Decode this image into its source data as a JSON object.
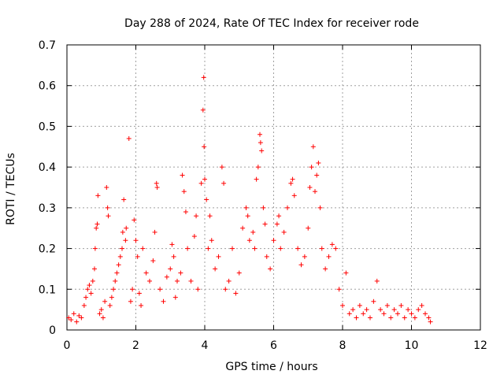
{
  "chart_data": {
    "type": "scatter",
    "title": "Day 288 of 2024, Rate Of TEC Index for receiver rode",
    "xlabel": "GPS time / hours",
    "ylabel": "ROTI / TECUs",
    "xlim": [
      0,
      12
    ],
    "ylim": [
      0,
      0.7
    ],
    "xticks": [
      0,
      2,
      4,
      6,
      8,
      10,
      12
    ],
    "xtick_labels": [
      "0",
      "2",
      "4",
      "6",
      "8",
      "10",
      "12"
    ],
    "yticks": [
      0,
      0.1,
      0.2,
      0.3,
      0.4,
      0.5,
      0.6,
      0.7
    ],
    "ytick_labels": [
      "0",
      "0.1",
      "0.2",
      "0.3",
      "0.4",
      "0.5",
      "0.6",
      "0.7"
    ],
    "grid": true,
    "marker": "+",
    "series": [
      {
        "name": "ROTI",
        "color": "#ff0000",
        "points": [
          [
            0.05,
            0.03
          ],
          [
            0.12,
            0.025
          ],
          [
            0.2,
            0.04
          ],
          [
            0.28,
            0.02
          ],
          [
            0.35,
            0.035
          ],
          [
            0.42,
            0.03
          ],
          [
            0.5,
            0.06
          ],
          [
            0.55,
            0.08
          ],
          [
            0.6,
            0.1
          ],
          [
            0.65,
            0.11
          ],
          [
            0.7,
            0.09
          ],
          [
            0.75,
            0.12
          ],
          [
            0.8,
            0.15
          ],
          [
            0.82,
            0.2
          ],
          [
            0.85,
            0.25
          ],
          [
            0.88,
            0.26
          ],
          [
            0.9,
            0.33
          ],
          [
            0.95,
            0.04
          ],
          [
            1.0,
            0.05
          ],
          [
            1.05,
            0.03
          ],
          [
            1.1,
            0.07
          ],
          [
            1.15,
            0.35
          ],
          [
            1.18,
            0.3
          ],
          [
            1.2,
            0.28
          ],
          [
            1.25,
            0.06
          ],
          [
            1.3,
            0.08
          ],
          [
            1.35,
            0.1
          ],
          [
            1.4,
            0.12
          ],
          [
            1.45,
            0.14
          ],
          [
            1.5,
            0.16
          ],
          [
            1.55,
            0.18
          ],
          [
            1.6,
            0.2
          ],
          [
            1.62,
            0.24
          ],
          [
            1.65,
            0.32
          ],
          [
            1.7,
            0.22
          ],
          [
            1.72,
            0.25
          ],
          [
            1.8,
            0.47
          ],
          [
            1.85,
            0.07
          ],
          [
            1.9,
            0.1
          ],
          [
            1.95,
            0.27
          ],
          [
            2.0,
            0.22
          ],
          [
            2.05,
            0.18
          ],
          [
            2.1,
            0.09
          ],
          [
            2.15,
            0.06
          ],
          [
            2.2,
            0.2
          ],
          [
            2.3,
            0.14
          ],
          [
            2.4,
            0.12
          ],
          [
            2.5,
            0.17
          ],
          [
            2.55,
            0.24
          ],
          [
            2.6,
            0.36
          ],
          [
            2.62,
            0.35
          ],
          [
            2.7,
            0.1
          ],
          [
            2.8,
            0.07
          ],
          [
            2.9,
            0.13
          ],
          [
            3.0,
            0.15
          ],
          [
            3.05,
            0.21
          ],
          [
            3.1,
            0.18
          ],
          [
            3.15,
            0.08
          ],
          [
            3.2,
            0.12
          ],
          [
            3.3,
            0.14
          ],
          [
            3.35,
            0.38
          ],
          [
            3.4,
            0.34
          ],
          [
            3.45,
            0.29
          ],
          [
            3.5,
            0.2
          ],
          [
            3.6,
            0.12
          ],
          [
            3.7,
            0.23
          ],
          [
            3.75,
            0.28
          ],
          [
            3.8,
            0.1
          ],
          [
            3.9,
            0.36
          ],
          [
            3.95,
            0.54
          ],
          [
            3.97,
            0.62
          ],
          [
            3.98,
            0.45
          ],
          [
            4.0,
            0.37
          ],
          [
            4.05,
            0.32
          ],
          [
            4.1,
            0.2
          ],
          [
            4.15,
            0.28
          ],
          [
            4.2,
            0.22
          ],
          [
            4.3,
            0.15
          ],
          [
            4.4,
            0.18
          ],
          [
            4.5,
            0.4
          ],
          [
            4.55,
            0.36
          ],
          [
            4.6,
            0.1
          ],
          [
            4.7,
            0.12
          ],
          [
            4.8,
            0.2
          ],
          [
            4.9,
            0.09
          ],
          [
            5.0,
            0.14
          ],
          [
            5.1,
            0.25
          ],
          [
            5.2,
            0.3
          ],
          [
            5.25,
            0.28
          ],
          [
            5.3,
            0.22
          ],
          [
            5.4,
            0.24
          ],
          [
            5.45,
            0.2
          ],
          [
            5.5,
            0.37
          ],
          [
            5.55,
            0.4
          ],
          [
            5.6,
            0.48
          ],
          [
            5.62,
            0.46
          ],
          [
            5.65,
            0.44
          ],
          [
            5.7,
            0.3
          ],
          [
            5.75,
            0.26
          ],
          [
            5.8,
            0.18
          ],
          [
            5.9,
            0.15
          ],
          [
            6.0,
            0.22
          ],
          [
            6.1,
            0.26
          ],
          [
            6.15,
            0.28
          ],
          [
            6.2,
            0.2
          ],
          [
            6.3,
            0.24
          ],
          [
            6.4,
            0.3
          ],
          [
            6.5,
            0.36
          ],
          [
            6.55,
            0.37
          ],
          [
            6.6,
            0.33
          ],
          [
            6.7,
            0.2
          ],
          [
            6.8,
            0.16
          ],
          [
            6.9,
            0.18
          ],
          [
            7.0,
            0.25
          ],
          [
            7.05,
            0.35
          ],
          [
            7.1,
            0.4
          ],
          [
            7.15,
            0.45
          ],
          [
            7.2,
            0.34
          ],
          [
            7.25,
            0.38
          ],
          [
            7.3,
            0.41
          ],
          [
            7.35,
            0.3
          ],
          [
            7.4,
            0.2
          ],
          [
            7.5,
            0.15
          ],
          [
            7.6,
            0.18
          ],
          [
            7.7,
            0.21
          ],
          [
            7.8,
            0.2
          ],
          [
            7.9,
            0.1
          ],
          [
            8.0,
            0.06
          ],
          [
            8.1,
            0.14
          ],
          [
            8.2,
            0.04
          ],
          [
            8.3,
            0.05
          ],
          [
            8.4,
            0.03
          ],
          [
            8.5,
            0.06
          ],
          [
            8.6,
            0.04
          ],
          [
            8.7,
            0.05
          ],
          [
            8.8,
            0.03
          ],
          [
            8.9,
            0.07
          ],
          [
            9.0,
            0.12
          ],
          [
            9.1,
            0.05
          ],
          [
            9.2,
            0.04
          ],
          [
            9.3,
            0.06
          ],
          [
            9.4,
            0.03
          ],
          [
            9.5,
            0.05
          ],
          [
            9.6,
            0.04
          ],
          [
            9.7,
            0.06
          ],
          [
            9.8,
            0.03
          ],
          [
            9.9,
            0.05
          ],
          [
            10.0,
            0.04
          ],
          [
            10.1,
            0.03
          ],
          [
            10.2,
            0.05
          ],
          [
            10.3,
            0.06
          ],
          [
            10.4,
            0.04
          ],
          [
            10.5,
            0.03
          ],
          [
            10.55,
            0.02
          ]
        ]
      }
    ]
  }
}
